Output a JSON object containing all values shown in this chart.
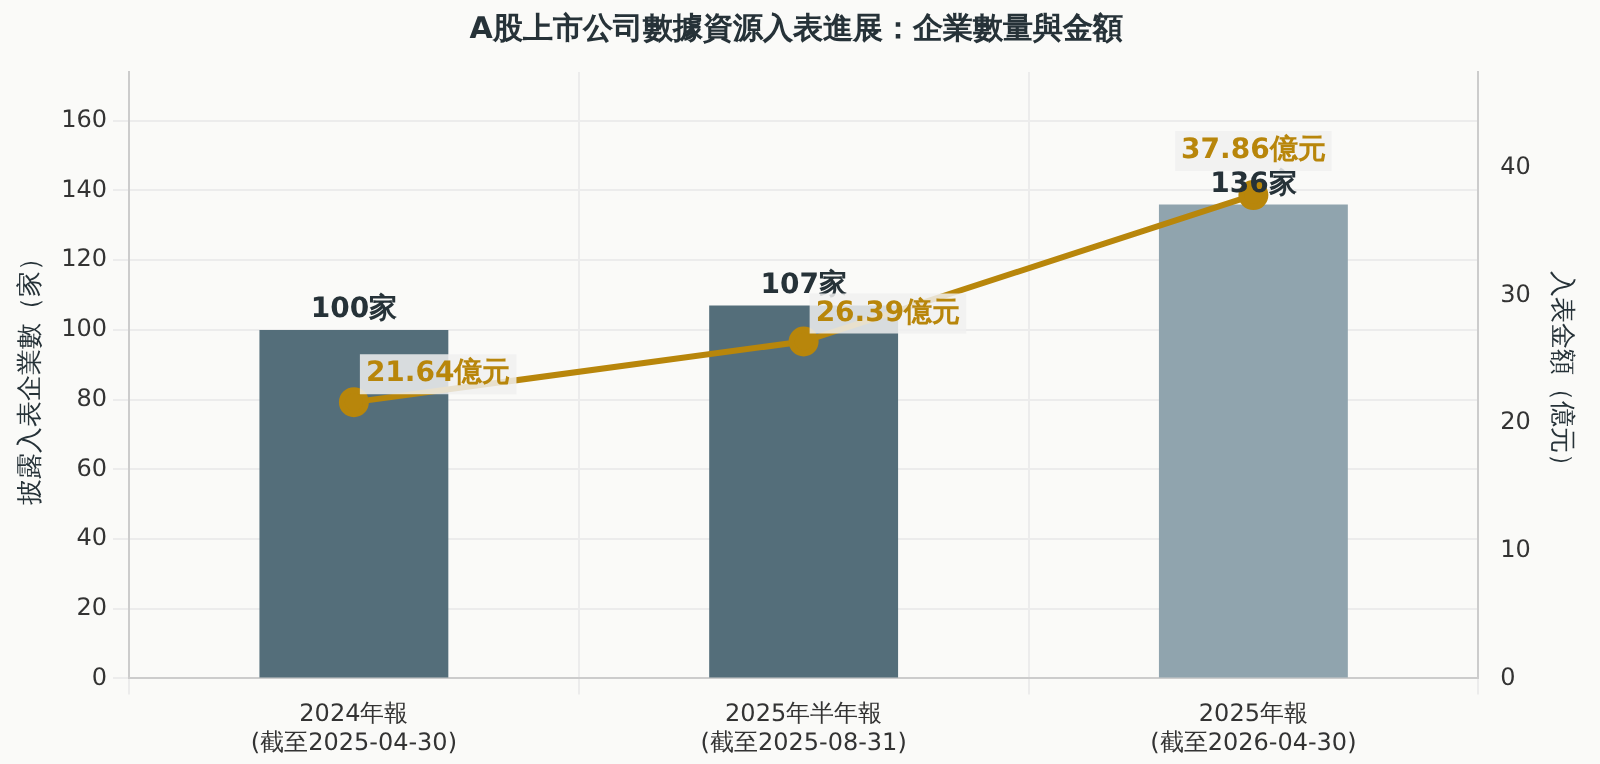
{
  "chart_data": {
    "type": "bar",
    "title": "A股上市公司數據資源入表進展：企業數量與金額",
    "categories": [
      "2024年報\n(截至2025-04-30)",
      "2025年半年報\n(截至2025-08-31)",
      "2025年報\n(截至2026-04-30)"
    ],
    "series": [
      {
        "colors": [
          "#546e7a",
          "#546e7a",
          "#90a4ae"
        ],
        "values": [
          100,
          107,
          136
        ],
        "value_labels": [
          "100家",
          "107家",
          "136家"
        ]
      },
      {
        "type": "line",
        "axis": "y2",
        "color": "#b8860b",
        "values": [
          21.64,
          26.39,
          37.86
        ],
        "value_labels": [
          "21.64億元",
          "26.39億元",
          "37.86億元"
        ]
      }
    ],
    "ylabel": "披露入表企業數（家）",
    "y2label": "入表金額（億元）",
    "ylim": [
      0,
      174
    ],
    "yticks": [
      0,
      20,
      40,
      60,
      80,
      100,
      120,
      140,
      160
    ],
    "y2lim": [
      0,
      47.5
    ],
    "y2ticks": [
      0,
      10,
      20,
      30,
      40
    ],
    "grid": true,
    "legend": false,
    "marker": "circle",
    "line_style": "solid"
  }
}
